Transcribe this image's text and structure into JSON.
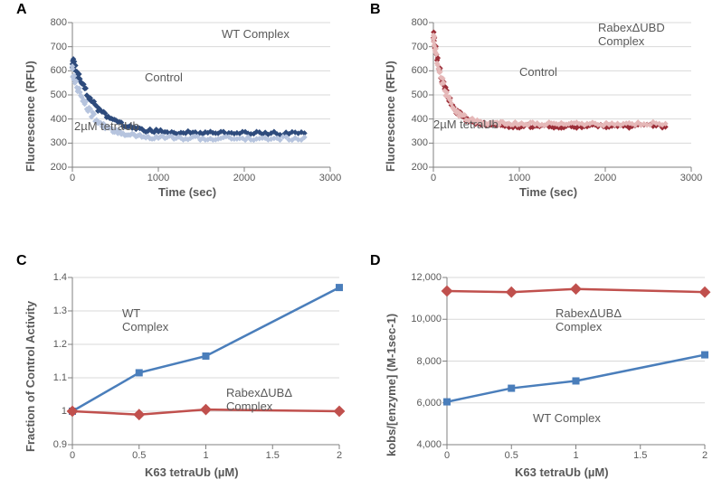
{
  "panelA": {
    "label": "A",
    "type": "scatter-decay",
    "title_annot": "WT Complex",
    "annot_control": "Control",
    "annot_tetra": "2µM tetraUb",
    "xlabel": "Time (sec)",
    "ylabel": "Fluorescence (RFU)",
    "xlim": [
      0,
      3000
    ],
    "ylim": [
      200,
      800
    ],
    "xticks": [
      0,
      1000,
      2000,
      3000
    ],
    "yticks": [
      200,
      300,
      400,
      500,
      600,
      700,
      800
    ],
    "label_fontsize": 13,
    "tick_fontsize": 11,
    "grid_color": "#d9d9d9",
    "axis_color": "#808080",
    "series": [
      {
        "name": "Control",
        "color": "#2e4b7c",
        "curve": {
          "A": 300,
          "B": 340,
          "tau": 280
        }
      },
      {
        "name": "2µM tetraUb",
        "color": "#b6c4de",
        "curve": {
          "A": 280,
          "B": 320,
          "tau": 220
        }
      }
    ]
  },
  "panelB": {
    "label": "B",
    "type": "scatter-decay",
    "title_annot": "RabexΔUBD\nComplex",
    "annot_control": "Control",
    "annot_tetra": "2µM tetraUb",
    "xlabel": "Time (sec)",
    "ylabel": "Fluorescence (RFU)",
    "xlim": [
      0,
      3000
    ],
    "ylim": [
      200,
      800
    ],
    "xticks": [
      0,
      1000,
      2000,
      3000
    ],
    "yticks": [
      200,
      300,
      400,
      500,
      600,
      700,
      800
    ],
    "label_fontsize": 13,
    "tick_fontsize": 11,
    "grid_color": "#d9d9d9",
    "axis_color": "#808080",
    "series": [
      {
        "name": "Control",
        "color": "#9c2e38",
        "curve": {
          "A": 380,
          "B": 370,
          "tau": 150
        }
      },
      {
        "name": "2µM tetraUb",
        "color": "#e5b8b8",
        "curve": {
          "A": 370,
          "B": 380,
          "tau": 140
        }
      }
    ]
  },
  "panelC": {
    "label": "C",
    "type": "line",
    "annot_wt": "WT\nComplex",
    "annot_rabex": "RabexΔUBΔ\nComplex",
    "xlabel": "K63 tetraUb (µM)",
    "ylabel": "Fraction of Control Activity",
    "xlim": [
      0,
      2
    ],
    "ylim": [
      0.9,
      1.4
    ],
    "xticks": [
      0,
      0.5,
      1,
      1.5,
      2
    ],
    "yticks": [
      0.9,
      1.0,
      1.1,
      1.2,
      1.3,
      1.4
    ],
    "label_fontsize": 13,
    "tick_fontsize": 11,
    "grid_color": "#d9d9d9",
    "axis_color": "#808080",
    "line_width": 2.5,
    "marker_size": 6,
    "series": [
      {
        "name": "WT Complex",
        "color": "#4a7ebb",
        "marker": "square",
        "x": [
          0,
          0.5,
          1,
          2
        ],
        "y": [
          1.0,
          1.115,
          1.165,
          1.37
        ]
      },
      {
        "name": "RabexΔUBΔ Complex",
        "color": "#c0504d",
        "marker": "diamond",
        "x": [
          0,
          0.5,
          1,
          2
        ],
        "y": [
          1.0,
          0.99,
          1.005,
          1.0
        ]
      }
    ]
  },
  "panelD": {
    "label": "D",
    "type": "line",
    "annot_wt": "WT Complex",
    "annot_rabex": "RabexΔUBΔ\nComplex",
    "xlabel": "K63 tetraUb (µM)",
    "ylabel": "kobs/[enzyme] (M-1sec-1)",
    "xlim": [
      0,
      2
    ],
    "ylim": [
      4000,
      12000
    ],
    "xticks": [
      0,
      0.5,
      1,
      1.5,
      2
    ],
    "yticks": [
      4000,
      6000,
      8000,
      10000,
      12000
    ],
    "ytick_labels": [
      "4,000",
      "6,000",
      "8,000",
      "10,000",
      "12,000"
    ],
    "label_fontsize": 13,
    "tick_fontsize": 11,
    "grid_color": "#d9d9d9",
    "axis_color": "#808080",
    "line_width": 2.5,
    "marker_size": 6,
    "series": [
      {
        "name": "RabexΔUBΔ Complex",
        "color": "#c0504d",
        "marker": "diamond",
        "x": [
          0,
          0.5,
          1,
          2
        ],
        "y": [
          11350,
          11300,
          11450,
          11300
        ]
      },
      {
        "name": "WT Complex",
        "color": "#4a7ebb",
        "marker": "square",
        "x": [
          0,
          0.5,
          1,
          2
        ],
        "y": [
          6050,
          6700,
          7050,
          8300
        ]
      }
    ]
  }
}
